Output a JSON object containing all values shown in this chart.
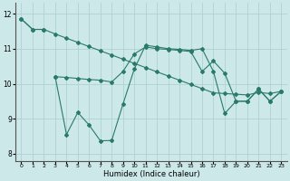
{
  "xlabel": "Humidex (Indice chaleur)",
  "bg_color": "#cce8e8",
  "line_color": "#2a7a6a",
  "grid_color": "#aacece",
  "xlim": [
    -0.5,
    23.5
  ],
  "ylim": [
    7.8,
    12.3
  ],
  "yticks": [
    8,
    9,
    10,
    11,
    12
  ],
  "xticks": [
    0,
    1,
    2,
    3,
    4,
    5,
    6,
    7,
    8,
    9,
    10,
    11,
    12,
    13,
    14,
    15,
    16,
    17,
    18,
    19,
    20,
    21,
    22,
    23
  ],
  "series1_x": [
    0,
    1,
    2
  ],
  "series1_y": [
    11.85,
    11.55,
    11.55
  ],
  "series2_x": [
    0,
    1,
    2,
    3,
    4,
    5,
    6,
    7,
    8,
    9,
    10,
    11,
    12,
    13,
    14,
    15,
    16,
    17,
    18,
    19,
    20,
    21,
    22,
    23
  ],
  "series2_y": [
    11.85,
    11.55,
    11.55,
    11.42,
    11.3,
    11.18,
    11.06,
    10.94,
    10.82,
    10.7,
    10.58,
    10.46,
    10.34,
    10.22,
    10.1,
    9.98,
    9.86,
    9.74,
    9.72,
    9.7,
    9.68,
    9.75,
    9.72,
    9.78
  ],
  "series3_x": [
    3,
    4,
    5,
    6,
    7,
    8,
    9,
    10,
    11,
    12,
    13,
    14,
    15,
    16,
    17,
    18,
    19,
    20,
    21,
    22,
    23
  ],
  "series3_y": [
    10.2,
    8.55,
    9.18,
    8.82,
    8.37,
    8.38,
    9.42,
    10.42,
    11.1,
    11.05,
    11.0,
    10.98,
    10.95,
    11.0,
    10.35,
    9.15,
    9.5,
    9.5,
    9.85,
    9.5,
    9.78
  ],
  "series4_x": [
    3,
    4,
    5,
    6,
    7,
    8,
    9,
    10,
    11,
    12,
    13,
    14,
    15,
    16,
    17,
    18,
    19,
    20,
    21,
    22,
    23
  ],
  "series4_y": [
    10.2,
    10.18,
    10.15,
    10.12,
    10.1,
    10.05,
    10.35,
    10.85,
    11.05,
    11.0,
    10.98,
    10.95,
    10.92,
    10.35,
    10.65,
    10.3,
    9.5,
    9.5,
    9.85,
    9.5,
    9.78
  ]
}
